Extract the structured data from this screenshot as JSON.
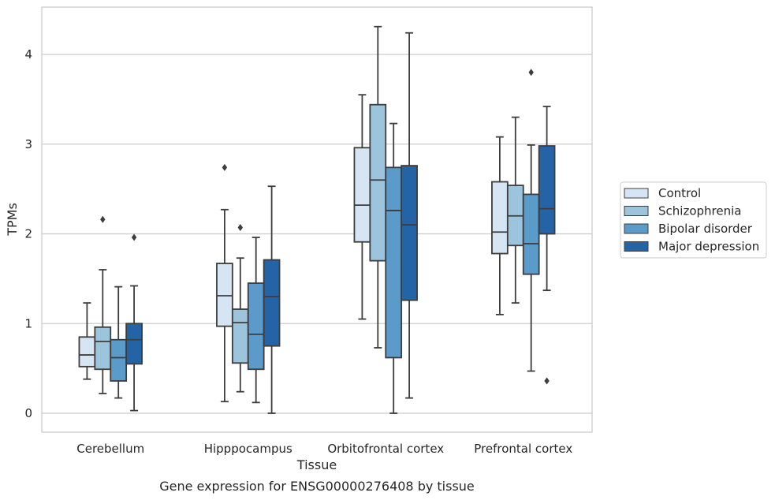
{
  "chart_data": {
    "type": "box",
    "caption": "Gene expression for ENSG00000276408 by tissue",
    "xlabel": "Tissue",
    "ylabel": "TPMs",
    "ylim": [
      -0.2,
      4.55
    ],
    "yticks": [
      0,
      1,
      2,
      3,
      4
    ],
    "grid": "horizontal",
    "legend_position": "right",
    "categories": [
      "Cerebellum",
      "Hipppocampus",
      "Orbitofrontal cortex",
      "Prefrontal cortex"
    ],
    "series": [
      {
        "name": "Control",
        "color": "#d6e5f3",
        "boxes": [
          {
            "whislo": 0.38,
            "q1": 0.52,
            "med": 0.65,
            "q3": 0.85,
            "whishi": 1.23,
            "fliers": []
          },
          {
            "whislo": 0.13,
            "q1": 0.97,
            "med": 1.31,
            "q3": 1.67,
            "whishi": 2.27,
            "fliers": [
              2.74
            ]
          },
          {
            "whislo": 1.05,
            "q1": 1.91,
            "med": 2.32,
            "q3": 2.96,
            "whishi": 3.55,
            "fliers": []
          },
          {
            "whislo": 1.1,
            "q1": 1.78,
            "med": 2.02,
            "q3": 2.58,
            "whishi": 3.08,
            "fliers": []
          }
        ]
      },
      {
        "name": "Schizophrenia",
        "color": "#9cc4dc",
        "boxes": [
          {
            "whislo": 0.22,
            "q1": 0.49,
            "med": 0.8,
            "q3": 0.96,
            "whishi": 1.6,
            "fliers": [
              2.16
            ]
          },
          {
            "whislo": 0.24,
            "q1": 0.56,
            "med": 1.01,
            "q3": 1.16,
            "whishi": 1.73,
            "fliers": [
              2.07
            ]
          },
          {
            "whislo": 0.73,
            "q1": 1.7,
            "med": 2.6,
            "q3": 3.44,
            "whishi": 4.31,
            "fliers": []
          },
          {
            "whislo": 1.23,
            "q1": 1.87,
            "med": 2.2,
            "q3": 2.54,
            "whishi": 3.3,
            "fliers": []
          }
        ]
      },
      {
        "name": "Bipolar disorder",
        "color": "#5a9bc9",
        "boxes": [
          {
            "whislo": 0.17,
            "q1": 0.36,
            "med": 0.62,
            "q3": 0.82,
            "whishi": 1.41,
            "fliers": []
          },
          {
            "whislo": 0.12,
            "q1": 0.49,
            "med": 0.88,
            "q3": 1.45,
            "whishi": 1.96,
            "fliers": []
          },
          {
            "whislo": 0.0,
            "q1": 0.62,
            "med": 2.26,
            "q3": 2.74,
            "whishi": 3.23,
            "fliers": []
          },
          {
            "whislo": 0.47,
            "q1": 1.55,
            "med": 1.89,
            "q3": 2.44,
            "whishi": 2.99,
            "fliers": [
              3.8
            ]
          }
        ]
      },
      {
        "name": "Major depression",
        "color": "#2464a6",
        "boxes": [
          {
            "whislo": 0.03,
            "q1": 0.55,
            "med": 0.82,
            "q3": 1.0,
            "whishi": 1.42,
            "fliers": [
              1.96
            ]
          },
          {
            "whislo": 0.0,
            "q1": 0.75,
            "med": 1.3,
            "q3": 1.71,
            "whishi": 2.53,
            "fliers": []
          },
          {
            "whislo": 0.17,
            "q1": 1.26,
            "med": 2.1,
            "q3": 2.76,
            "whishi": 4.24,
            "fliers": []
          },
          {
            "whislo": 1.37,
            "q1": 2.0,
            "med": 2.28,
            "q3": 2.98,
            "whishi": 3.42,
            "fliers": [
              0.36
            ]
          }
        ]
      }
    ]
  }
}
